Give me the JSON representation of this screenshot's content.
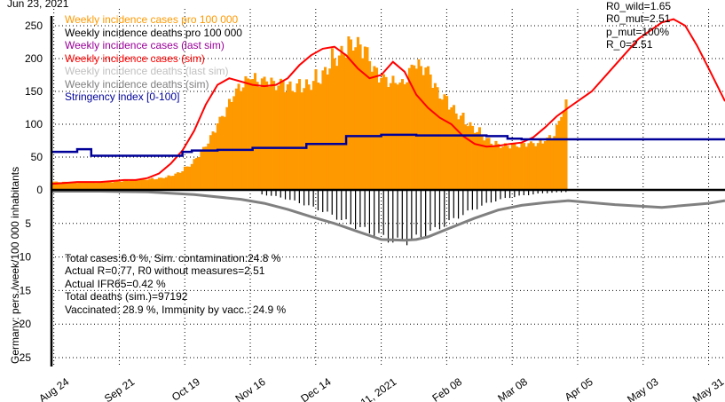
{
  "chart_data": {
    "type": "bar",
    "top_date": "Jun 23, 2021",
    "ylabel": "Germany: pers./week/100 000 inhabitants",
    "upper_y_ticks": [
      "250",
      "200",
      "150",
      "100",
      "50",
      "0"
    ],
    "lower_y_ticks": [
      "5",
      "10",
      "15",
      "20",
      "25"
    ],
    "x_ticks": [
      "Aug 24",
      "Sep 21",
      "Oct 19",
      "Nov 16",
      "Dec 14",
      "Jan 11, 2021",
      "Feb 08",
      "Mar 08",
      "Apr 05",
      "May 03",
      "May 31"
    ],
    "legend": [
      {
        "label": "Weekly incidence cases pro 100 000",
        "color": "#ff9900"
      },
      {
        "label": "Weekly incidence deaths pro 100 000",
        "color": "#000000"
      },
      {
        "label": "Weekly incidence cases (last sim)",
        "color": "#990099"
      },
      {
        "label": "Weekly incidence cases (sim)",
        "color": "#ff0000"
      },
      {
        "label": "Weekly incidence deaths (last sim)",
        "color": "#c0c0c0"
      },
      {
        "label": "Weekly incidence deaths (sim)",
        "color": "#808080"
      },
      {
        "label": "Stringency index  [0-100]",
        "color": "#000099"
      }
    ],
    "params": [
      "R0_wild=1.65",
      "R0_mut=2.51",
      "p_mut=100%",
      "R_0=2.51"
    ],
    "stats": [
      "Total cases:6.0 %, Sim. contamination:24.8 %",
      "Actual R=0.77,  R0 without measures=2.51",
      "Actual IFR65=0.42 %",
      "Total deaths (sim.)=97192",
      "Vaccinated: 28.9 %, Immunity by vacc.: 24.9 %"
    ],
    "upper_ylim": [
      0,
      260
    ],
    "lower_ylim": [
      0,
      26
    ],
    "x_range_days_from_aug24": [
      -1,
      287
    ],
    "series": [
      {
        "name": "Weekly incidence cases pro 100 000",
        "kind": "bars",
        "x": [
          -1,
          4,
          9,
          14,
          19,
          24,
          29,
          34,
          39,
          44,
          49,
          54,
          59,
          64,
          69,
          74,
          79,
          84,
          89,
          94,
          99,
          104,
          109,
          114,
          119,
          124,
          129,
          134,
          139,
          144,
          149,
          154,
          159,
          164,
          169,
          174,
          179,
          184,
          189,
          194,
          199,
          204,
          209,
          214,
          219
        ],
        "y": [
          12,
          12,
          11,
          12,
          11,
          12,
          13,
          15,
          16,
          17,
          20,
          27,
          40,
          62,
          92,
          125,
          155,
          170,
          165,
          162,
          158,
          155,
          160,
          170,
          195,
          210,
          225,
          205,
          170,
          165,
          160,
          190,
          185,
          150,
          130,
          110,
          95,
          80,
          68,
          67,
          68,
          70,
          72,
          85,
          130
        ]
      },
      {
        "name": "Weekly incidence deaths pro 100 000",
        "kind": "bars",
        "x": [
          89,
          94,
          99,
          104,
          109,
          114,
          119,
          124,
          129,
          134,
          139,
          144,
          149,
          154,
          159,
          164,
          169,
          174,
          179,
          184,
          189,
          194,
          199,
          204,
          209,
          214,
          219
        ],
        "y": [
          0.7,
          0.9,
          1.3,
          1.8,
          2.4,
          3.0,
          3.8,
          4.6,
          5.4,
          6.1,
          6.8,
          7.5,
          7.8,
          7.4,
          6.6,
          5.8,
          4.8,
          3.8,
          3.0,
          2.2,
          1.6,
          1.2,
          0.9,
          0.7,
          0.5,
          0.4,
          0.3
        ]
      },
      {
        "name": "Weekly incidence cases (sim)",
        "kind": "line",
        "x": [
          -1,
          10,
          20,
          30,
          35,
          40,
          45,
          50,
          55,
          60,
          65,
          70,
          75,
          80,
          85,
          90,
          95,
          100,
          105,
          110,
          115,
          120,
          125,
          130,
          135,
          140,
          145,
          150,
          155,
          160,
          165,
          170,
          175,
          180,
          185,
          190,
          195,
          200,
          205,
          210,
          215,
          220,
          230,
          240,
          250,
          260,
          265,
          270,
          275,
          280,
          287
        ],
        "y": [
          9,
          12,
          12,
          15,
          15,
          18,
          25,
          40,
          60,
          90,
          130,
          160,
          170,
          165,
          160,
          158,
          160,
          170,
          190,
          205,
          215,
          218,
          205,
          185,
          170,
          175,
          195,
          180,
          145,
          125,
          110,
          100,
          82,
          70,
          66,
          67,
          70,
          72,
          80,
          95,
          112,
          125,
          150,
          190,
          230,
          255,
          260,
          250,
          220,
          185,
          135
        ]
      },
      {
        "name": "Weekly incidence deaths (sim)",
        "kind": "line",
        "x": [
          -1,
          20,
          40,
          60,
          80,
          90,
          100,
          110,
          120,
          130,
          140,
          150,
          155,
          160,
          170,
          180,
          190,
          200,
          210,
          220,
          240,
          260,
          280,
          287
        ],
        "y": [
          0.2,
          0.2,
          0.3,
          0.7,
          1.4,
          2.0,
          2.9,
          4.0,
          5.0,
          6.2,
          7.4,
          7.5,
          7.4,
          7.0,
          5.6,
          4.2,
          3.0,
          2.3,
          1.9,
          1.6,
          2.2,
          2.6,
          2.0,
          1.6
        ]
      },
      {
        "name": "Stringency index  [0-100]",
        "kind": "step",
        "x": [
          -1,
          10,
          16,
          35,
          55,
          59,
          70,
          85,
          108,
          125,
          140,
          155,
          185,
          194,
          200,
          287
        ],
        "y": [
          58,
          62,
          52,
          52,
          58,
          60,
          61,
          64,
          70,
          82,
          84,
          83,
          82,
          78,
          77,
          77
        ]
      }
    ]
  }
}
